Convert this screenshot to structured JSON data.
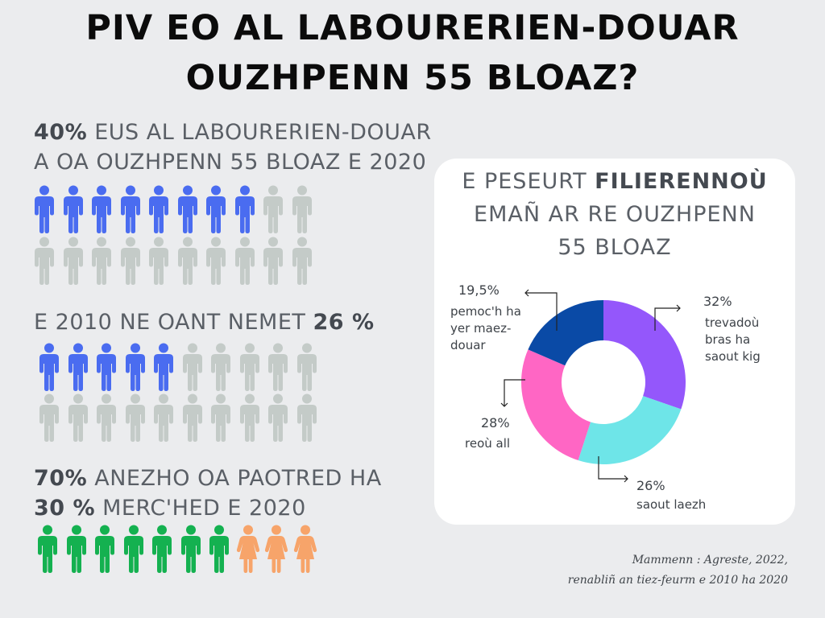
{
  "title": {
    "line1": "PIV EO AL LABOURERIEN-DOUAR",
    "line2": "OUZHPENN 55 BLOAZ?"
  },
  "stats": {
    "s2020": {
      "bold": "40%",
      "text1": " EUS AL LABOURERIEN-DOUAR",
      "text2": "A OA OUZHPENN 55 BLOAZ E 2020",
      "value": 40
    },
    "s2010": {
      "text": "E 2010 NE OANT NEMET ",
      "bold": "26 %",
      "value": 26
    },
    "gender": {
      "bold1": "70%",
      "text1": " ANEZHO OA PAOTRED HA",
      "bold2": "30 %",
      "text2": "  MERC'HED E 2020",
      "men": 70,
      "women": 30
    }
  },
  "colors": {
    "blue_figure": "#4a6cf0",
    "grey_figure": "#c4cbc8",
    "green_figure": "#14b150",
    "orange_figure": "#f7a46a",
    "slice_purple": "#9457fb",
    "slice_cyan": "#6ee5e8",
    "slice_pink": "#ff66c4",
    "slice_navy": "#0a4aa6"
  },
  "chart_title": {
    "pre": "E PESEURT ",
    "bold": "FILIERENNOÙ",
    "line2": "EMAÑ AR RE OUZHPENN",
    "line3": "55 BLOAZ"
  },
  "chart_data": {
    "type": "pie",
    "donut": true,
    "title": "E PESEURT FILIERENNOÙ EMAÑ AR RE OUZHPENN 55 BLOAZ",
    "slices": [
      {
        "label": "trevadoù bras ha saout kig",
        "label_lines": [
          "trevadoù",
          "bras ha",
          "saout kig"
        ],
        "value": 32,
        "display": "32%",
        "color": "#9457fb"
      },
      {
        "label": "saout laezh",
        "label_lines": [
          "saout laezh"
        ],
        "value": 26,
        "display": "26%",
        "color": "#6ee5e8"
      },
      {
        "label": "reoù all",
        "label_lines": [
          "reoù all"
        ],
        "value": 28,
        "display": "28%",
        "color": "#ff66c4"
      },
      {
        "label": "pemoc'h ha yer maez-douar",
        "label_lines": [
          "pemoc'h ha",
          "yer maez-",
          "douar"
        ],
        "value": 19.5,
        "display": "19,5%",
        "color": "#0a4aa6"
      }
    ]
  },
  "source": {
    "line1": "Mammenn : Agreste, 2022,",
    "line2": "renabliñ an tiez-feurm e 2010 ha 2020"
  }
}
